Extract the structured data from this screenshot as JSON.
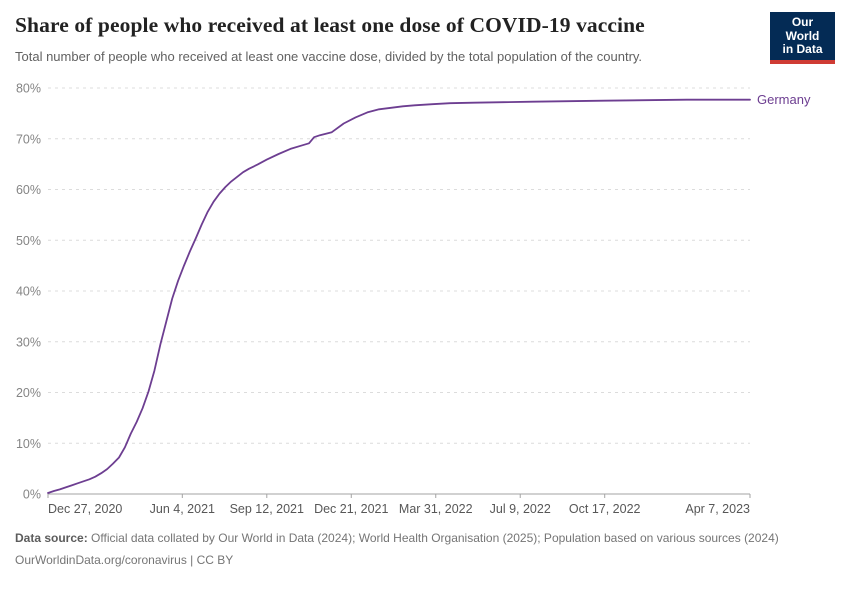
{
  "header": {
    "title": "Share of people who received at least one dose of COVID-19 vaccine",
    "subtitle": "Total number of people who received at least one vaccine dose, divided by the total population of the country.",
    "logo": {
      "line1": "Our World",
      "line2": "in Data",
      "bg_color": "#042b55",
      "accent_color": "#cf3b34"
    }
  },
  "chart_data": {
    "type": "line",
    "title": "Share of people who received at least one dose of COVID-19 vaccine",
    "xlabel": "",
    "ylabel": "",
    "ylim": [
      0,
      80
    ],
    "y_ticks": [
      0,
      10,
      20,
      30,
      40,
      50,
      60,
      70,
      80
    ],
    "y_tick_suffix": "%",
    "grid": "horizontal-dashed",
    "legend_position": "end-of-line",
    "x_range": [
      "2020-12-27",
      "2023-04-07"
    ],
    "x_ticks": [
      {
        "date": "2020-12-27",
        "label": "Dec 27, 2020"
      },
      {
        "date": "2021-06-04",
        "label": "Jun 4, 2021"
      },
      {
        "date": "2021-09-12",
        "label": "Sep 12, 2021"
      },
      {
        "date": "2021-12-21",
        "label": "Dec 21, 2021"
      },
      {
        "date": "2022-03-31",
        "label": "Mar 31, 2022"
      },
      {
        "date": "2022-07-09",
        "label": "Jul 9, 2022"
      },
      {
        "date": "2022-10-17",
        "label": "Oct 17, 2022"
      },
      {
        "date": "2023-04-07",
        "label": "Apr 7, 2023"
      }
    ],
    "colors": {
      "gridline": "#dcdcdc",
      "axis": "#a3a3a3",
      "y_tick_label": "#858585",
      "x_tick_label": "#575757"
    },
    "series": [
      {
        "name": "Germany",
        "color": "#6d3e91",
        "points": [
          [
            "2020-12-27",
            0.2
          ],
          [
            "2021-01-03",
            0.6
          ],
          [
            "2021-01-10",
            0.9
          ],
          [
            "2021-01-17",
            1.3
          ],
          [
            "2021-01-24",
            1.7
          ],
          [
            "2021-01-31",
            2.1
          ],
          [
            "2021-02-07",
            2.5
          ],
          [
            "2021-02-14",
            2.9
          ],
          [
            "2021-02-21",
            3.4
          ],
          [
            "2021-02-28",
            4.1
          ],
          [
            "2021-03-07",
            4.9
          ],
          [
            "2021-03-14",
            6.0
          ],
          [
            "2021-03-21",
            7.2
          ],
          [
            "2021-03-28",
            9.2
          ],
          [
            "2021-04-04",
            11.9
          ],
          [
            "2021-04-11",
            14.2
          ],
          [
            "2021-04-18",
            16.9
          ],
          [
            "2021-04-25",
            20.2
          ],
          [
            "2021-05-02",
            24.3
          ],
          [
            "2021-05-09",
            29.5
          ],
          [
            "2021-05-16",
            34.0
          ],
          [
            "2021-05-23",
            38.5
          ],
          [
            "2021-05-30",
            42.0
          ],
          [
            "2021-06-06",
            45.0
          ],
          [
            "2021-06-13",
            47.8
          ],
          [
            "2021-06-20",
            50.4
          ],
          [
            "2021-06-27",
            53.1
          ],
          [
            "2021-07-04",
            55.6
          ],
          [
            "2021-07-11",
            57.6
          ],
          [
            "2021-07-18",
            59.2
          ],
          [
            "2021-07-25",
            60.5
          ],
          [
            "2021-08-01",
            61.6
          ],
          [
            "2021-08-08",
            62.5
          ],
          [
            "2021-08-15",
            63.4
          ],
          [
            "2021-08-22",
            64.1
          ],
          [
            "2021-09-01",
            64.9
          ],
          [
            "2021-09-12",
            65.9
          ],
          [
            "2021-09-26",
            67.0
          ],
          [
            "2021-10-10",
            68.0
          ],
          [
            "2021-10-24",
            68.7
          ],
          [
            "2021-11-01",
            69.1
          ],
          [
            "2021-11-07",
            70.3
          ],
          [
            "2021-11-14",
            70.7
          ],
          [
            "2021-11-28",
            71.3
          ],
          [
            "2021-12-12",
            73.0
          ],
          [
            "2021-12-26",
            74.2
          ],
          [
            "2022-01-09",
            75.2
          ],
          [
            "2022-01-23",
            75.8
          ],
          [
            "2022-02-06",
            76.1
          ],
          [
            "2022-02-20",
            76.4
          ],
          [
            "2022-03-06",
            76.6
          ],
          [
            "2022-03-27",
            76.8
          ],
          [
            "2022-04-17",
            77.0
          ],
          [
            "2022-05-15",
            77.1
          ],
          [
            "2022-06-19",
            77.2
          ],
          [
            "2022-07-24",
            77.3
          ],
          [
            "2022-09-04",
            77.4
          ],
          [
            "2022-10-16",
            77.5
          ],
          [
            "2022-12-04",
            77.6
          ],
          [
            "2023-01-22",
            77.7
          ],
          [
            "2023-04-07",
            77.7
          ]
        ]
      }
    ]
  },
  "footer": {
    "source_label": "Data source:",
    "source_text": "Official data collated by Our World in Data (2024); World Health Organisation (2025); Population based on various sources (2024)",
    "license": "OurWorldinData.org/coronavirus | CC BY"
  }
}
